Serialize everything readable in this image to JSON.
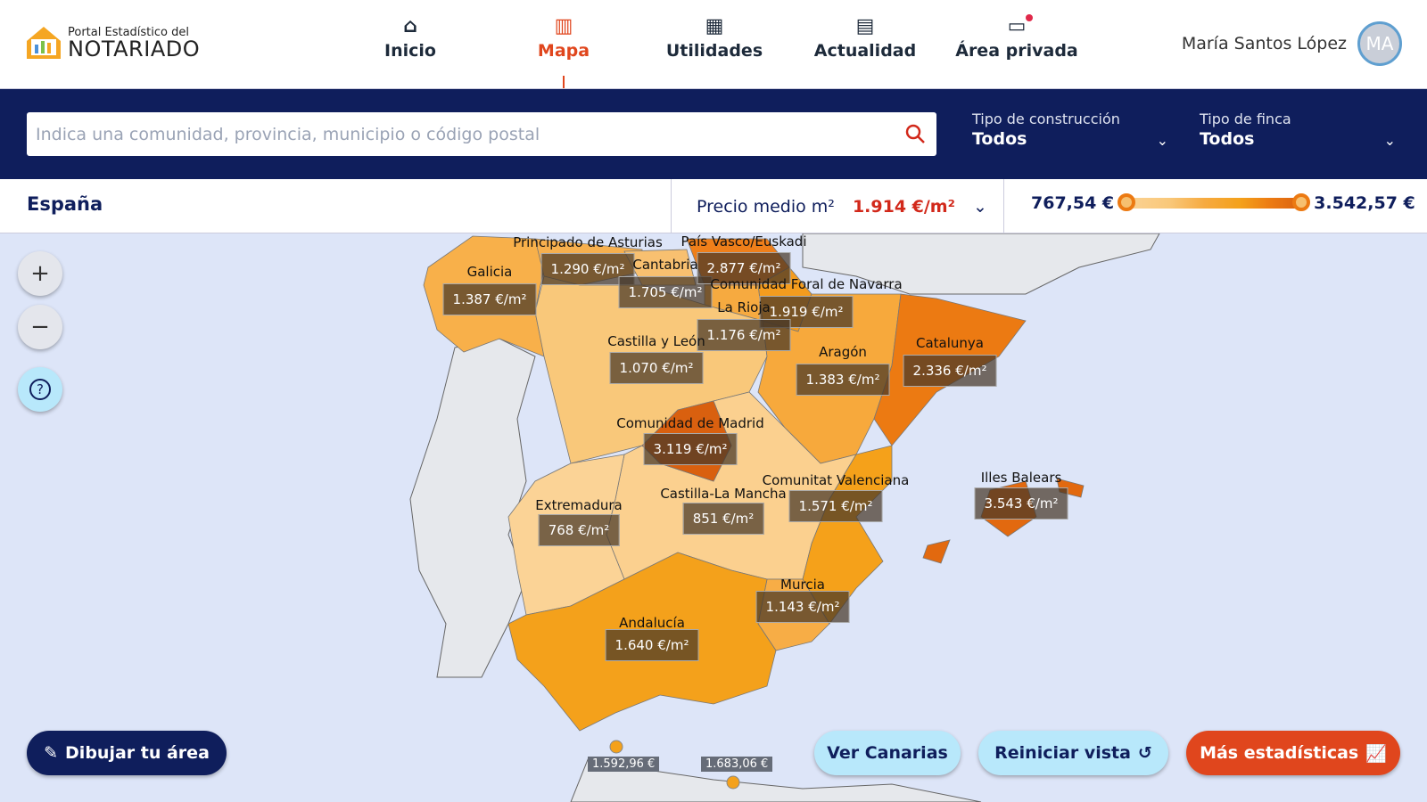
{
  "logo": {
    "line1": "Portal Estadístico del",
    "line2": "NOTARIADO"
  },
  "nav": [
    {
      "label": "Inicio",
      "icon": "home-icon"
    },
    {
      "label": "Mapa",
      "icon": "map-icon",
      "active": true
    },
    {
      "label": "Utilidades",
      "icon": "grid-icon"
    },
    {
      "label": "Actualidad",
      "icon": "newspaper-icon"
    },
    {
      "label": "Área privada",
      "icon": "folder-icon",
      "notification": true
    }
  ],
  "user": {
    "name": "María Santos López",
    "initials": "MA"
  },
  "search": {
    "placeholder": "Indica una comunidad, provincia, municipio o código postal",
    "value": ""
  },
  "filters": [
    {
      "label": "Tipo de construcción",
      "value": "Todos"
    },
    {
      "label": "Tipo de finca",
      "value": "Todos"
    }
  ],
  "info": {
    "country": "España",
    "metric_label": "Precio medio m²",
    "metric_value": "1.914 €/m²",
    "range_min": "767,54 €",
    "range_max": "3.542,57 €"
  },
  "regions": [
    {
      "name": "Galicia",
      "price": "1.387 €/m²"
    },
    {
      "name": "Principado de Asturias",
      "price": "1.290 €/m²"
    },
    {
      "name": "Cantabria",
      "price": "1.705 €/m²"
    },
    {
      "name": "País Vasco/Euskadi",
      "price": "2.877 €/m²"
    },
    {
      "name": "Comunidad Foral de Navarra",
      "price": "1.919 €/m²"
    },
    {
      "name": "La Rioja",
      "price": "1.176 €/m²"
    },
    {
      "name": "Castilla y León",
      "price": "1.070 €/m²"
    },
    {
      "name": "Aragón",
      "price": "1.383 €/m²"
    },
    {
      "name": "Catalunya",
      "price": "2.336 €/m²"
    },
    {
      "name": "Comunidad de Madrid",
      "price": "3.119 €/m²"
    },
    {
      "name": "Castilla-La Mancha",
      "price": "851 €/m²"
    },
    {
      "name": "Extremadura",
      "price": "768 €/m²"
    },
    {
      "name": "Comunitat Valenciana",
      "price": "1.571 €/m²"
    },
    {
      "name": "Illes Balears",
      "price": "3.543 €/m²"
    },
    {
      "name": "Murcia",
      "price": "1.143 €/m²"
    },
    {
      "name": "Andalucía",
      "price": "1.640 €/m²"
    }
  ],
  "cities": [
    {
      "price": "1.592,96 €"
    },
    {
      "price": "1.683,06 €"
    }
  ],
  "colors": {
    "accent": "#e0461d",
    "navy": "#0f1e5c",
    "cta": "#e0461d",
    "light_button": "#b8e8fb"
  },
  "buttons": {
    "draw": "Dibujar tu área",
    "canarias": "Ver Canarias",
    "reset": "Reiniciar vista",
    "stats": "Más estadísticas"
  }
}
